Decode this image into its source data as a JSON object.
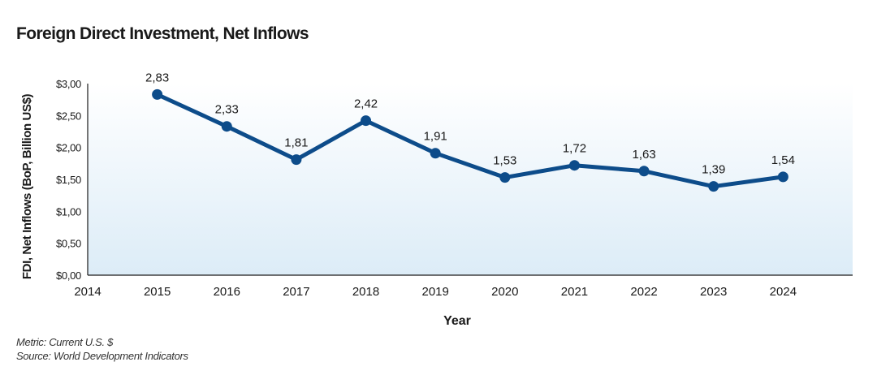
{
  "chart_data": {
    "type": "line",
    "title": "Foreign Direct Investment, Net Inflows",
    "xlabel": "Year",
    "ylabel": "FDI, Net Inflows (BoP, Billion US$)",
    "x_ticks": [
      "2014",
      "2015",
      "2016",
      "2017",
      "2018",
      "2019",
      "2020",
      "2021",
      "2022",
      "2023",
      "2024"
    ],
    "y_ticks": [
      "$0,00",
      "$0,50",
      "$1,00",
      "$1,50",
      "$2,00",
      "$2,50",
      "$3,00"
    ],
    "xlim": [
      2014,
      2025
    ],
    "ylim": [
      0,
      3
    ],
    "grid": false,
    "series": [
      {
        "x": [
          2015,
          2016,
          2017,
          2018,
          2019,
          2020,
          2021,
          2022,
          2023,
          2024
        ],
        "values": [
          2.83,
          2.33,
          1.81,
          2.42,
          1.91,
          1.53,
          1.72,
          1.63,
          1.39,
          1.54
        ],
        "labels": [
          "2,83",
          "2,33",
          "1,81",
          "2,42",
          "1,91",
          "1,53",
          "1,72",
          "1,63",
          "1,39",
          "1,54"
        ],
        "color": "#0d4c8a"
      }
    ]
  },
  "footnotes": {
    "metric": "Metric: Current U.S. $",
    "source": "Source: World Development Indicators"
  },
  "colors": {
    "line": "#0d4c8a",
    "axis": "#1a1a1a",
    "bg_top": "#ffffff",
    "bg_bottom": "#dcecf7"
  }
}
